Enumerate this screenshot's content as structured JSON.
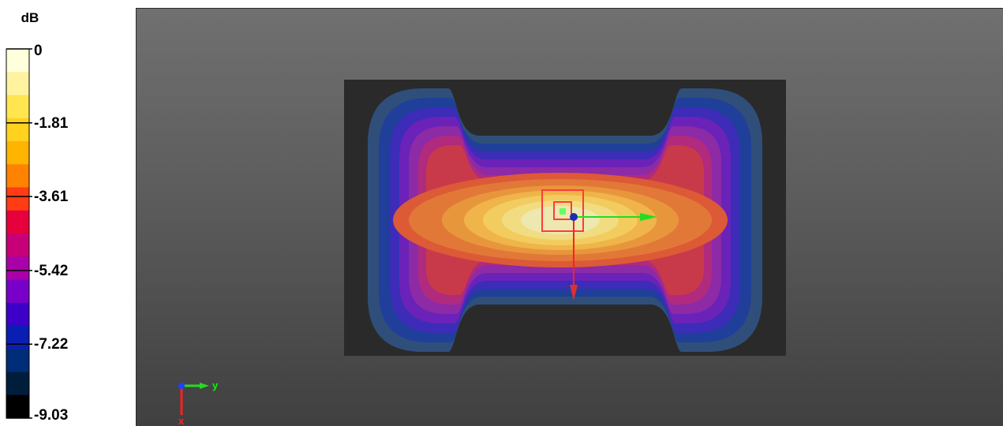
{
  "legend": {
    "unit": "dB",
    "tick_labels": [
      "0",
      "-1.81",
      "-3.61",
      "-5.42",
      "-7.22",
      "-9.03"
    ],
    "range": [
      -9.03,
      0
    ]
  },
  "chart_data": {
    "type": "heatmap",
    "unit": "dB",
    "zlim": [
      -9.03,
      0
    ],
    "color_scale": [
      {
        "value": 0,
        "color": "#ffffdc"
      },
      {
        "value": -0.6,
        "color": "#fff3a0"
      },
      {
        "value": -1.2,
        "color": "#ffe650"
      },
      {
        "value": -1.81,
        "color": "#ffd21e"
      },
      {
        "value": -2.4,
        "color": "#ffb400"
      },
      {
        "value": -3.0,
        "color": "#ff8200"
      },
      {
        "value": -3.61,
        "color": "#ff3c14"
      },
      {
        "value": -4.2,
        "color": "#e6003c"
      },
      {
        "value": -4.8,
        "color": "#c80078"
      },
      {
        "value": -5.42,
        "color": "#aa00aa"
      },
      {
        "value": -6.0,
        "color": "#7800c8"
      },
      {
        "value": -6.6,
        "color": "#3c00c8"
      },
      {
        "value": -7.22,
        "color": "#0a1eb4"
      },
      {
        "value": -7.8,
        "color": "#002d78"
      },
      {
        "value": -8.4,
        "color": "#001e3c"
      },
      {
        "value": -9.03,
        "color": "#000000"
      }
    ]
  },
  "axes_triad": {
    "y_label": "y",
    "x_label": "x",
    "y_color": "#00ff00",
    "x_color": "#ff2020",
    "z_color": "#2040ff"
  },
  "colors": {
    "background_top": "#707070",
    "background_bottom": "#404040",
    "plane": "#2a2a2a",
    "marker": "#ff3030"
  }
}
